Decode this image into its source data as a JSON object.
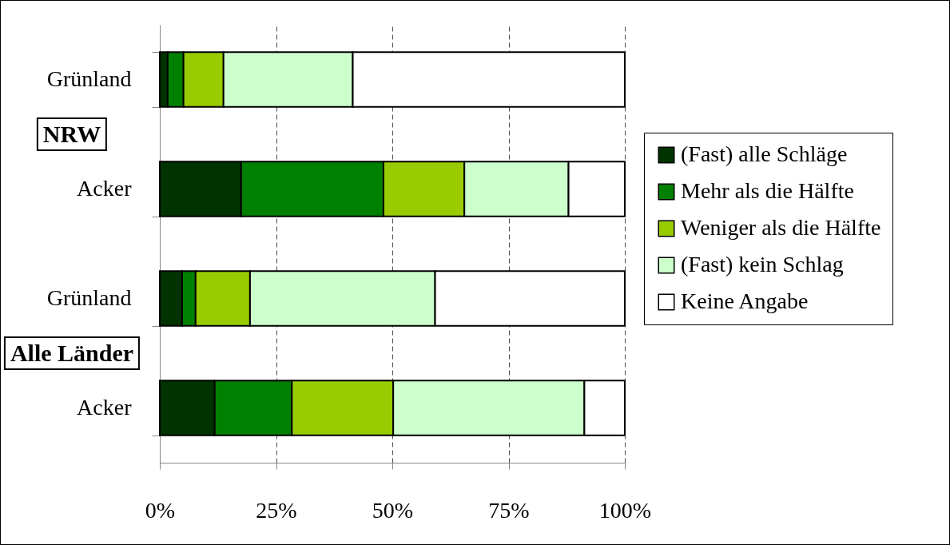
{
  "chart_data": {
    "type": "bar",
    "orientation": "horizontal",
    "stacked": true,
    "categories": [
      "Grünland",
      "Acker",
      "Grünland",
      "Acker"
    ],
    "series": [
      {
        "name": "(Fast) alle Schläge",
        "color": "#003300",
        "values": [
          1.7,
          17.5,
          4.8,
          11.8
        ]
      },
      {
        "name": "Mehr als die Hälfte",
        "color": "#008000",
        "values": [
          3.4,
          30.6,
          2.9,
          16.6
        ]
      },
      {
        "name": "Weniger als die Hälfte",
        "color": "#99cc00",
        "values": [
          8.6,
          17.4,
          11.7,
          21.8
        ]
      },
      {
        "name": "(Fast) kein Schlag",
        "color": "#ccffcc",
        "values": [
          27.8,
          22.4,
          39.8,
          41.1
        ]
      },
      {
        "name": "Keine Angabe",
        "color": "#ffffff",
        "values": [
          58.5,
          12.1,
          40.8,
          8.7
        ]
      }
    ],
    "xlim": [
      0,
      100
    ],
    "xticks": [
      {
        "value": 0,
        "label": "0%"
      },
      {
        "value": 25,
        "label": "25%"
      },
      {
        "value": 50,
        "label": "50%"
      },
      {
        "value": 75,
        "label": "75%"
      },
      {
        "value": 100,
        "label": "100%"
      }
    ],
    "grid": "x",
    "legend": "right",
    "annotations": [
      "NRW",
      "Alle Länder"
    ]
  }
}
